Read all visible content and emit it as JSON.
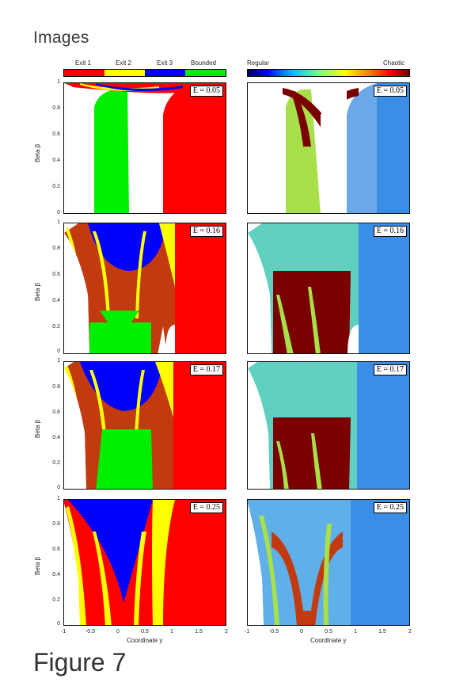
{
  "page": {
    "heading": "Images",
    "figure_label": "Figure 7"
  },
  "legend_left": {
    "labels": [
      "Exit 1",
      "Exit 2",
      "Exit 3",
      "Bounded"
    ],
    "colors": [
      "#ff0000",
      "#ffff00",
      "#0000ff",
      "#00ee00"
    ]
  },
  "legend_right": {
    "low_label": "Regular",
    "high_label": "Chaotic"
  },
  "panels": {
    "energies": [
      "E = 0.05",
      "E = 0.16",
      "E = 0.17",
      "E = 0.25"
    ]
  },
  "axes": {
    "ylabel": "Beta β",
    "xlabel": "Coordinate y",
    "yticks": [
      "0",
      "0.2",
      "0.4",
      "0.6",
      "0.8",
      "1"
    ],
    "xticks": [
      "-1",
      "-0.5",
      "0",
      "0.5",
      "1",
      "1.5",
      "2"
    ]
  },
  "colors": {
    "exit1": "#ff0000",
    "exit2": "#ffff00",
    "exit3": "#0000ff",
    "bounded": "#00ee00",
    "chaotic_dark": "#7a0000",
    "regular_blue": "#3a8ee6"
  }
}
